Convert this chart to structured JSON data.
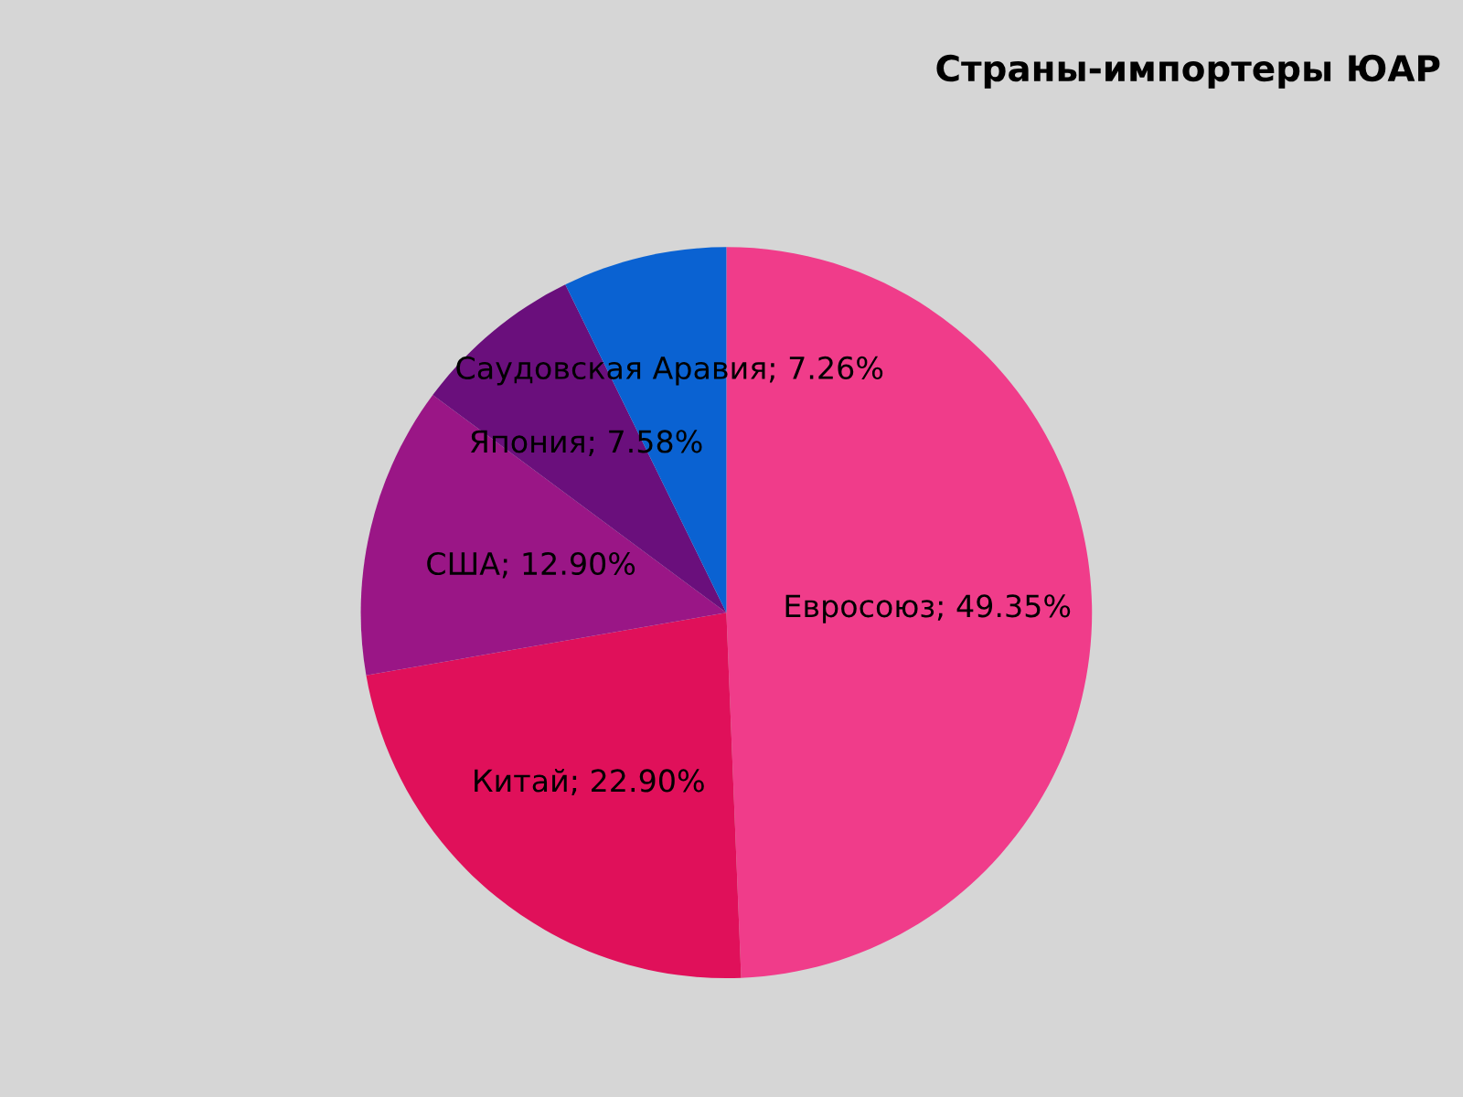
{
  "chart_data": {
    "type": "pie",
    "title": "Страны-импортеры ЮАР",
    "categories": [
      "Евросоюз",
      "Китай",
      "США",
      "Япония",
      "Саудовская Аравия"
    ],
    "values": [
      49.35,
      22.9,
      12.9,
      7.58,
      7.26
    ],
    "colors": [
      "#f03c8a",
      "#e0105a",
      "#9a1686",
      "#6a0f7c",
      "#0a62d2"
    ],
    "value_labels": [
      "; 49.35%",
      "; 22.90%",
      "; 12.90%",
      "; 7.58%",
      "; 7.26%"
    ],
    "legend": false
  }
}
